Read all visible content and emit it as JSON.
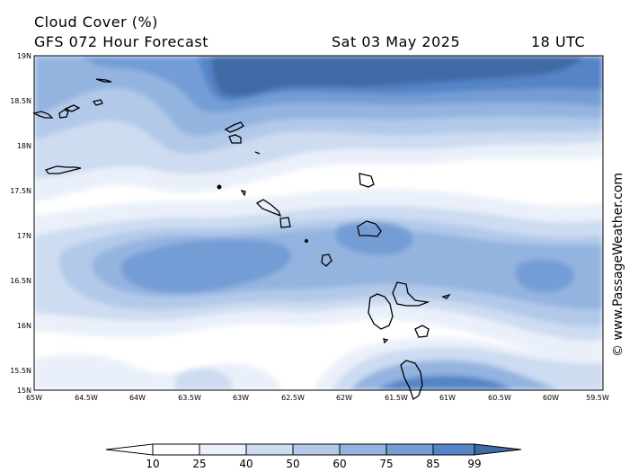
{
  "header": {
    "title": "Cloud Cover (%)",
    "subtitle": "GFS 072 Hour Forecast",
    "date": "Sat 03 May 2025",
    "time": "18 UTC"
  },
  "map": {
    "lat_labels": [
      "19N",
      "18.5N",
      "18N",
      "17.5N",
      "17N",
      "16.5N",
      "16N",
      "15.5N",
      "15N"
    ],
    "lon_labels": [
      "65W",
      "64.5W",
      "64W",
      "63.5W",
      "63W",
      "62.5W",
      "62W",
      "61.5W",
      "61W",
      "60.5W",
      "60W",
      "59.5W"
    ],
    "colors": {
      "c10": "#ffffff",
      "c25": "#eaf0fa",
      "c40": "#cddcf1",
      "c50": "#b2c9e9",
      "c60": "#94b4e0",
      "c75": "#749dd5",
      "c85": "#5584c7",
      "c99": "#3f6aa6",
      "coast": "#000000"
    }
  },
  "colorbar": {
    "labels": [
      "10",
      "25",
      "40",
      "50",
      "60",
      "75",
      "85",
      "99"
    ],
    "colors": [
      "#ffffff",
      "#eaf0fa",
      "#cddcf1",
      "#b2c9e9",
      "#94b4e0",
      "#749dd5",
      "#5584c7",
      "#3f6aa6",
      "#2c5a9e"
    ]
  },
  "watermark": "© www.PassageWeather.com"
}
